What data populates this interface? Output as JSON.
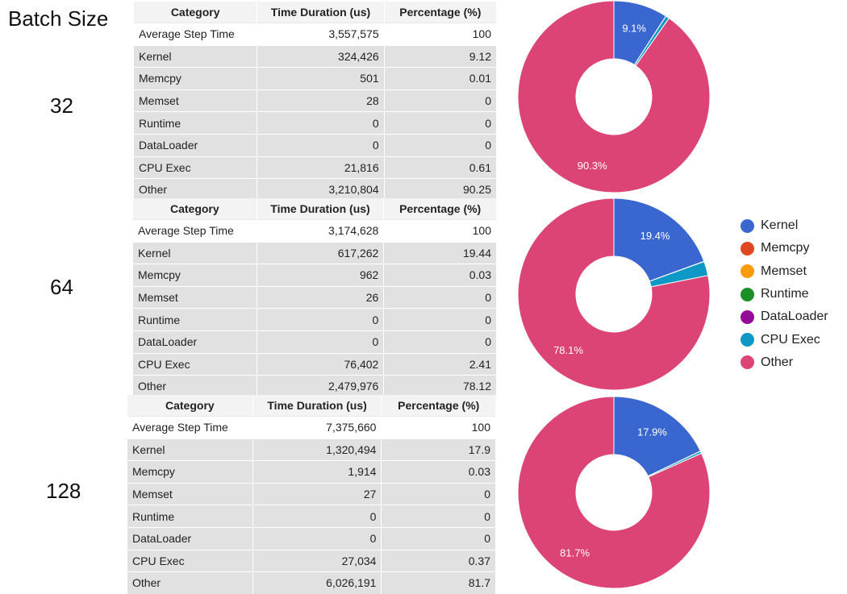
{
  "title": "Batch Size",
  "columns": [
    "Category",
    "Time Duration (us)",
    "Percentage (%)"
  ],
  "legend": {
    "items": [
      {
        "label": "Kernel",
        "color": "#3a67cf"
      },
      {
        "label": "Memcpy",
        "color": "#e04621"
      },
      {
        "label": "Memset",
        "color": "#fb9a0a"
      },
      {
        "label": "Runtime",
        "color": "#1a8f26"
      },
      {
        "label": "DataLoader",
        "color": "#960a98"
      },
      {
        "label": "CPU Exec",
        "color": "#0e98c5"
      },
      {
        "label": "Other",
        "color": "#dd4476"
      }
    ]
  },
  "batches": [
    {
      "label": "32",
      "rows": [
        [
          "Average Step Time",
          "3,557,575",
          "100"
        ],
        [
          "Kernel",
          "324,426",
          "9.12"
        ],
        [
          "Memcpy",
          "501",
          "0.01"
        ],
        [
          "Memset",
          "28",
          "0"
        ],
        [
          "Runtime",
          "0",
          "0"
        ],
        [
          "DataLoader",
          "0",
          "0"
        ],
        [
          "CPU Exec",
          "21,816",
          "0.61"
        ],
        [
          "Other",
          "3,210,804",
          "90.25"
        ]
      ],
      "slice_labels": {
        "kernel": "9.1%",
        "other": "90.3%"
      }
    },
    {
      "label": "64",
      "rows": [
        [
          "Average Step Time",
          "3,174,628",
          "100"
        ],
        [
          "Kernel",
          "617,262",
          "19.44"
        ],
        [
          "Memcpy",
          "962",
          "0.03"
        ],
        [
          "Memset",
          "26",
          "0"
        ],
        [
          "Runtime",
          "0",
          "0"
        ],
        [
          "DataLoader",
          "0",
          "0"
        ],
        [
          "CPU Exec",
          "76,402",
          "2.41"
        ],
        [
          "Other",
          "2,479,976",
          "78.12"
        ]
      ],
      "slice_labels": {
        "kernel": "19.4%",
        "other": "78.1%"
      }
    },
    {
      "label": "128",
      "rows": [
        [
          "Average Step Time",
          "7,375,660",
          "100"
        ],
        [
          "Kernel",
          "1,320,494",
          "17.9"
        ],
        [
          "Memcpy",
          "1,914",
          "0.03"
        ],
        [
          "Memset",
          "27",
          "0"
        ],
        [
          "Runtime",
          "0",
          "0"
        ],
        [
          "DataLoader",
          "0",
          "0"
        ],
        [
          "CPU Exec",
          "27,034",
          "0.37"
        ],
        [
          "Other",
          "6,026,191",
          "81.7"
        ]
      ],
      "slice_labels": {
        "kernel": "17.9%",
        "other": "81.7%"
      }
    }
  ],
  "chart_data": [
    {
      "type": "pie",
      "title": "",
      "categories": [
        "Kernel",
        "Memcpy",
        "Memset",
        "Runtime",
        "DataLoader",
        "CPU Exec",
        "Other"
      ],
      "values": [
        9.12,
        0.01,
        0,
        0,
        0,
        0.61,
        90.25
      ],
      "donut": true
    },
    {
      "type": "pie",
      "title": "",
      "categories": [
        "Kernel",
        "Memcpy",
        "Memset",
        "Runtime",
        "DataLoader",
        "CPU Exec",
        "Other"
      ],
      "values": [
        19.44,
        0.03,
        0,
        0,
        0,
        2.41,
        78.12
      ],
      "donut": true
    },
    {
      "type": "pie",
      "title": "",
      "categories": [
        "Kernel",
        "Memcpy",
        "Memset",
        "Runtime",
        "DataLoader",
        "CPU Exec",
        "Other"
      ],
      "values": [
        17.9,
        0.03,
        0,
        0,
        0,
        0.37,
        81.7
      ],
      "donut": true
    }
  ]
}
